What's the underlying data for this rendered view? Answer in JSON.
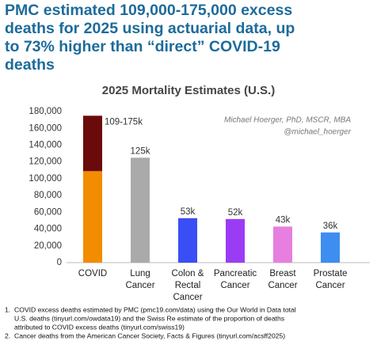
{
  "header": {
    "title": [
      "PMC estimated 109,000-175,000 excess",
      "deaths for 2025 using actuarial data, up",
      "to 73% higher than “direct” COVID-19",
      "deaths"
    ]
  },
  "chart_data": {
    "type": "bar",
    "title": "2025 Mortality Estimates (U.S.)",
    "watermark": [
      "Michael Hoerger, PhD, MSCR, MBA",
      "@michael_hoerger"
    ],
    "categories": [
      [
        "COVID"
      ],
      [
        "Lung",
        "Cancer"
      ],
      [
        "Colon &",
        "Rectal",
        "Cancer"
      ],
      [
        "Pancreatic",
        "Cancer"
      ],
      [
        "Breast",
        "Cancer"
      ],
      [
        "Prostate",
        "Cancer"
      ]
    ],
    "series": [
      {
        "colors": [
          "#f28c00",
          "#aaaaaa",
          "#3a4ef5",
          "#9b3cf5",
          "#e67fe0",
          "#3d8ef0"
        ],
        "values": [
          109000,
          125000,
          53000,
          52000,
          43000,
          36000
        ],
        "value_labels": [
          null,
          "125k",
          "53k",
          "52k",
          "43k",
          "36k"
        ]
      },
      {
        "colors": [
          "#6b0a0a",
          null,
          null,
          null,
          null,
          null
        ],
        "values": [
          66000,
          null,
          null,
          null,
          null,
          null
        ]
      }
    ],
    "annotations": [
      {
        "text": "109-175k",
        "category": "COVID"
      }
    ],
    "stacked": true,
    "ylim": [
      0,
      180000
    ],
    "yticks": [
      0,
      {
        "value": 20000,
        "label": "20,000"
      },
      {
        "value": 40000,
        "label": "40,000"
      },
      {
        "value": 60000,
        "label": "60,000"
      },
      {
        "value": 80000,
        "label": "80,000"
      },
      {
        "value": 100000,
        "label": "100,000"
      },
      {
        "value": 120000,
        "label": "120,000"
      },
      {
        "value": 140000,
        "label": "140,000"
      },
      {
        "value": 160000,
        "label": "160,000"
      },
      {
        "value": 180000,
        "label": "180,000"
      }
    ],
    "grid": false
  },
  "footnotes": [
    {
      "number": "1.",
      "lines": [
        "COVID excess deaths estimated by PMC (pmc19.com/data) using the Our World in Data total",
        "U.S. deaths (tinyurl.com/owdata19) and the Swiss Re estimate of the proportion of deaths",
        "attributed to COVID excess deaths (tinyurl.com/swiss19)"
      ]
    },
    {
      "number": "2.",
      "lines": [
        "Cancer deaths from the American Cancer Society, Facts & Figures (tinyurl.com/acsff2025)"
      ]
    }
  ]
}
